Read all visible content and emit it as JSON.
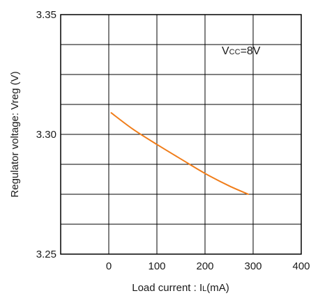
{
  "chart_data": {
    "type": "line",
    "xlabel_main": "Load current : I",
    "xlabel_sub": "L",
    "xlabel_unit": "(mA)",
    "ylabel": "Regulator voltage: Vreg (V)",
    "xlim": [
      -100,
      400
    ],
    "ylim": [
      3.25,
      3.35
    ],
    "x_ticks": [
      {
        "value": 0,
        "label": "0"
      },
      {
        "value": 100,
        "label": "100"
      },
      {
        "value": 200,
        "label": "200"
      },
      {
        "value": 300,
        "label": "300"
      },
      {
        "value": 400,
        "label": "400"
      }
    ],
    "y_ticks": [
      {
        "value": 3.25,
        "label": "3.25"
      },
      {
        "value": 3.3,
        "label": "3.30"
      },
      {
        "value": 3.35,
        "label": "3.35"
      }
    ],
    "x_grid": [
      0,
      100,
      200,
      300
    ],
    "y_grid": [
      3.2625,
      3.275,
      3.2875,
      3.3,
      3.3125,
      3.325,
      3.3375
    ],
    "grid": true,
    "annotation": {
      "main": "V",
      "sub": "CC",
      "rest": "=8V"
    },
    "series": [
      {
        "color": "#f07d1a",
        "x": [
          5,
          50,
          100,
          150,
          200,
          250,
          290
        ],
        "y": [
          3.309,
          3.3022,
          3.2958,
          3.2897,
          3.2837,
          3.2785,
          3.275
        ]
      }
    ]
  }
}
